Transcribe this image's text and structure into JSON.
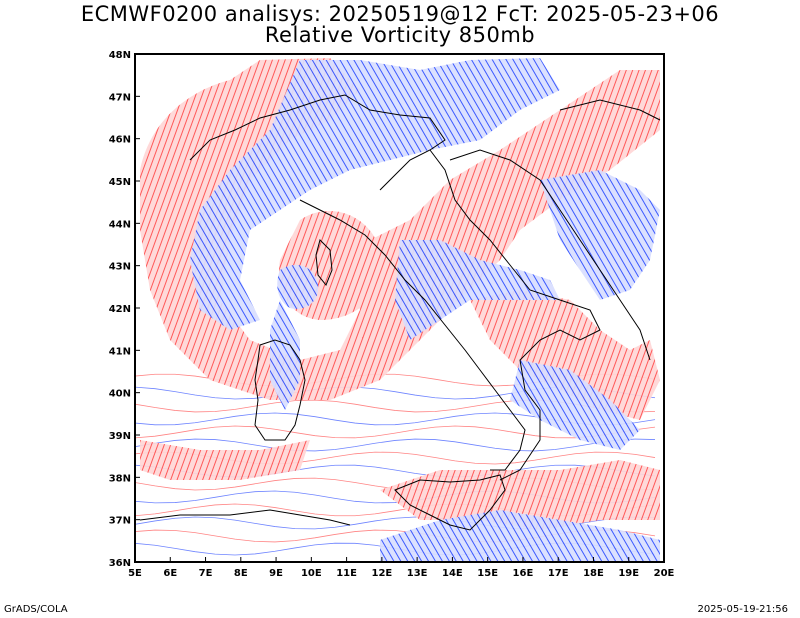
{
  "title_line1": "ECMWF0200 analisys: 20250519@12 FcT: 2025-05-23+06",
  "title_line2": "Relative Vorticity 850mb",
  "footer_left": "GrADS/COLA",
  "footer_right": "2025-05-19-21:56",
  "colors": {
    "positive": "#ff3b3b",
    "negative": "#2048ff",
    "coast": "#000000",
    "background": "#ffffff"
  },
  "chart_data": {
    "type": "heatmap",
    "variable": "Relative Vorticity 850mb",
    "lon_range": [
      5,
      20
    ],
    "lat_range": [
      36,
      48
    ],
    "x_ticks": [
      "5E",
      "6E",
      "7E",
      "8E",
      "9E",
      "10E",
      "11E",
      "12E",
      "13E",
      "14E",
      "15E",
      "16E",
      "17E",
      "18E",
      "19E",
      "20E"
    ],
    "y_ticks": [
      "36N",
      "37N",
      "38N",
      "39N",
      "40N",
      "41N",
      "42N",
      "43N",
      "44N",
      "45N",
      "46N",
      "47N",
      "48N"
    ],
    "contours": {
      "positive_color": "red",
      "negative_color": "blue"
    }
  }
}
